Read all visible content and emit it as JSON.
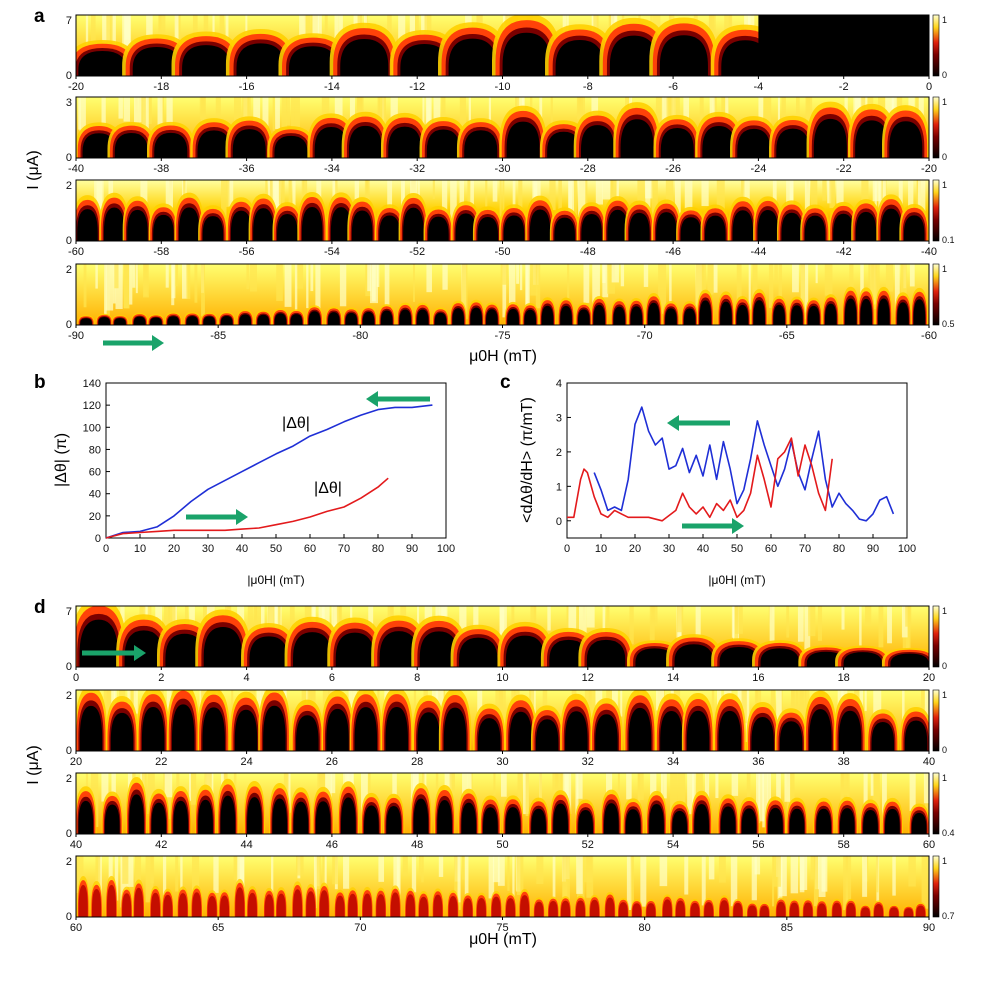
{
  "panel_letters": {
    "a": "a",
    "b": "b",
    "c": "c",
    "d": "d"
  },
  "colors": {
    "arrow": "#1aa36a",
    "series_blue": "#1f2fd6",
    "series_red": "#e31a1c",
    "map_dark": "#000000",
    "map_mid": "#e0200c",
    "map_light": "#ffff40"
  },
  "chart_data": [
    {
      "panel": "a",
      "type": "heatmap",
      "colormap": "black-red-yellow-white",
      "xlabel": "μ0H (mT)",
      "ylabel": "I (μA)",
      "rows": [
        {
          "xlim": [
            -20,
            0
          ],
          "ylim": [
            0,
            7
          ],
          "y_ticks": [
            "0",
            "7"
          ],
          "x_ticks": [
            "-20",
            "-18",
            "-16",
            "-14",
            "-12",
            "-10",
            "-8",
            "-6",
            "-4",
            "-2",
            "0"
          ],
          "colorbar_ticks": [
            "0",
            "1"
          ]
        },
        {
          "xlim": [
            -40,
            -20
          ],
          "ylim": [
            0,
            3
          ],
          "y_ticks": [
            "0",
            "3"
          ],
          "x_ticks": [
            "-40",
            "-38",
            "-36",
            "-34",
            "-32",
            "-30",
            "-28",
            "-26",
            "-24",
            "-22",
            "-20"
          ],
          "colorbar_ticks": [
            "0",
            "1"
          ]
        },
        {
          "xlim": [
            -60,
            -40
          ],
          "ylim": [
            0,
            2
          ],
          "y_ticks": [
            "0",
            "2"
          ],
          "x_ticks": [
            "-60",
            "-58",
            "-56",
            "-54",
            "-52",
            "-50",
            "-48",
            "-46",
            "-44",
            "-42",
            "-40"
          ],
          "colorbar_ticks": [
            "0.1",
            "1"
          ]
        },
        {
          "xlim": [
            -90,
            -60
          ],
          "ylim": [
            0,
            2
          ],
          "y_ticks": [
            "0",
            "2"
          ],
          "x_ticks": [
            "-90",
            "-85",
            "-80",
            "-75",
            "-70",
            "-65",
            "-60"
          ],
          "colorbar_ticks": [
            "0.5",
            "1"
          ]
        }
      ]
    },
    {
      "panel": "b",
      "type": "line",
      "xlabel": "|μ0H| (mT)",
      "ylabel": "|Δθ| (π)",
      "xlim": [
        0,
        100
      ],
      "ylim": [
        0,
        140
      ],
      "x_ticks": [
        "0",
        "10",
        "20",
        "30",
        "40",
        "50",
        "60",
        "70",
        "80",
        "90",
        "100"
      ],
      "y_ticks": [
        "0",
        "20",
        "40",
        "60",
        "80",
        "100",
        "120",
        "140"
      ],
      "annotations": [
        "|Δθ|",
        "|Δθ|"
      ],
      "series": [
        {
          "color": "blue",
          "x": [
            0,
            5,
            10,
            15,
            20,
            25,
            30,
            35,
            40,
            45,
            50,
            55,
            60,
            65,
            70,
            75,
            80,
            85,
            90,
            96
          ],
          "y": [
            0,
            5,
            6,
            10,
            20,
            33,
            44,
            52,
            60,
            68,
            76,
            83,
            92,
            98,
            105,
            111,
            116,
            118,
            118,
            120
          ]
        },
        {
          "color": "red",
          "x": [
            0,
            5,
            10,
            15,
            20,
            25,
            30,
            35,
            40,
            45,
            50,
            55,
            60,
            65,
            70,
            75,
            80,
            83
          ],
          "y": [
            0,
            4,
            5,
            6,
            7,
            7,
            7,
            7,
            8,
            9,
            12,
            15,
            19,
            24,
            28,
            36,
            46,
            54
          ]
        }
      ]
    },
    {
      "panel": "c",
      "type": "line",
      "xlabel": "|μ0H| (mT)",
      "ylabel": "<dΔθ/dH> (π/mT)",
      "xlim": [
        0,
        100
      ],
      "ylim": [
        -0.5,
        4
      ],
      "x_ticks": [
        "0",
        "10",
        "20",
        "30",
        "40",
        "50",
        "60",
        "70",
        "80",
        "90",
        "100"
      ],
      "y_ticks": [
        "0",
        "1",
        "2",
        "3",
        "4"
      ],
      "series": [
        {
          "color": "blue",
          "x": [
            8,
            10,
            12,
            14,
            16,
            18,
            20,
            22,
            24,
            26,
            28,
            30,
            32,
            34,
            36,
            38,
            40,
            42,
            44,
            46,
            48,
            50,
            52,
            54,
            56,
            58,
            60,
            62,
            64,
            66,
            68,
            70,
            72,
            74,
            76,
            78,
            80,
            82,
            84,
            86,
            88,
            90,
            92,
            94,
            96
          ],
          "y": [
            1.4,
            0.9,
            0.3,
            0.4,
            0.3,
            1.2,
            2.8,
            3.3,
            2.6,
            2.2,
            2.4,
            1.5,
            1.6,
            2.1,
            1.4,
            1.9,
            1.3,
            2.2,
            1.2,
            2.3,
            1.5,
            0.5,
            0.9,
            1.8,
            2.9,
            2.2,
            1.6,
            1.0,
            1.5,
            2.3,
            1.4,
            0.9,
            1.8,
            2.6,
            1.2,
            0.4,
            0.8,
            0.5,
            0.3,
            0.05,
            0.0,
            0.2,
            0.6,
            0.7,
            0.2
          ]
        },
        {
          "color": "red",
          "x": [
            0,
            2,
            4,
            5,
            6,
            8,
            10,
            12,
            14,
            16,
            18,
            20,
            24,
            28,
            32,
            34,
            36,
            38,
            40,
            42,
            44,
            46,
            48,
            50,
            52,
            54,
            56,
            58,
            60,
            62,
            64,
            66,
            68,
            70,
            72,
            74,
            76,
            78
          ],
          "y": [
            0.1,
            0.1,
            1.2,
            1.5,
            1.4,
            0.7,
            0.2,
            0.1,
            0.3,
            0.2,
            0.1,
            0.1,
            0.1,
            0.0,
            0.3,
            0.8,
            0.4,
            0.2,
            0.4,
            0.1,
            0.5,
            0.3,
            0.6,
            0.1,
            0.3,
            0.8,
            1.9,
            1.2,
            0.4,
            1.8,
            2.0,
            2.4,
            1.3,
            2.2,
            1.6,
            0.8,
            0.3,
            1.8
          ]
        }
      ]
    },
    {
      "panel": "d",
      "type": "heatmap",
      "colormap": "black-red-yellow-white",
      "xlabel": "μ0H (mT)",
      "ylabel": "I (μA)",
      "rows": [
        {
          "xlim": [
            0,
            20
          ],
          "ylim": [
            0,
            7
          ],
          "y_ticks": [
            "0",
            "7"
          ],
          "x_ticks": [
            "0",
            "2",
            "4",
            "6",
            "8",
            "10",
            "12",
            "14",
            "16",
            "18",
            "20"
          ],
          "colorbar_ticks": [
            "0",
            "1"
          ]
        },
        {
          "xlim": [
            20,
            40
          ],
          "ylim": [
            0,
            2
          ],
          "y_ticks": [
            "0",
            "2"
          ],
          "x_ticks": [
            "20",
            "22",
            "24",
            "26",
            "28",
            "30",
            "32",
            "34",
            "36",
            "38",
            "40"
          ],
          "colorbar_ticks": [
            "0",
            "1"
          ]
        },
        {
          "xlim": [
            40,
            60
          ],
          "ylim": [
            0,
            2
          ],
          "y_ticks": [
            "0",
            "2"
          ],
          "x_ticks": [
            "40",
            "42",
            "44",
            "46",
            "48",
            "50",
            "52",
            "54",
            "56",
            "58",
            "60"
          ],
          "colorbar_ticks": [
            "0.4",
            "1"
          ]
        },
        {
          "xlim": [
            60,
            90
          ],
          "ylim": [
            0,
            2
          ],
          "y_ticks": [
            "0",
            "2"
          ],
          "x_ticks": [
            "60",
            "65",
            "70",
            "75",
            "80",
            "85",
            "90"
          ],
          "colorbar_ticks": [
            "0.7",
            "1"
          ]
        }
      ]
    }
  ]
}
